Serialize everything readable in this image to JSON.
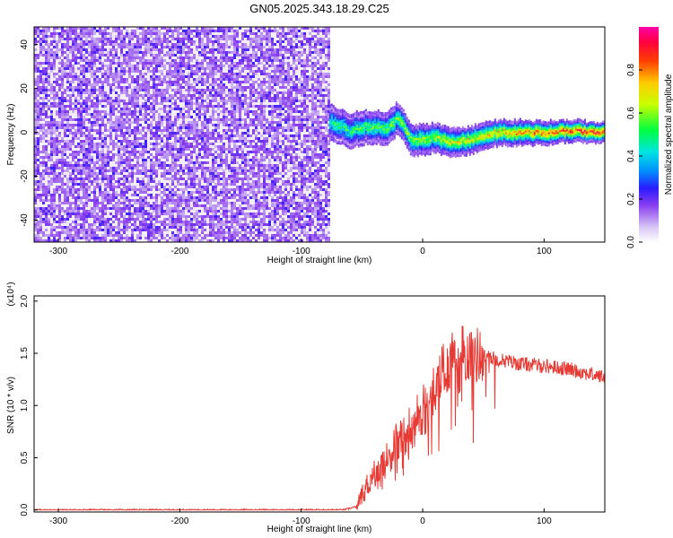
{
  "title": "GN05.2025.343.18.29.C25",
  "chart_data": [
    {
      "type": "heatmap",
      "xlabel": "Height of straight line (km)",
      "ylabel": "Frequency (Hz)",
      "xlim": [
        -320,
        150
      ],
      "ylim": [
        -50,
        48
      ],
      "xticks": [
        -300,
        -200,
        -100,
        0,
        100
      ],
      "yticks": [
        -40,
        -20,
        0,
        20,
        40
      ],
      "noise_region": {
        "x_range": [
          -320,
          -77
        ],
        "y_range": [
          -50,
          48
        ],
        "amplitude_level": 0.18
      },
      "signal_band": {
        "x_range": [
          -77,
          150
        ],
        "center_freq": 0,
        "half_width": 7,
        "centerline": [
          [
            -77,
            5
          ],
          [
            -60,
            1
          ],
          [
            -45,
            3
          ],
          [
            -30,
            2
          ],
          [
            -20,
            7
          ],
          [
            -10,
            -4
          ],
          [
            0,
            -3
          ],
          [
            10,
            -2
          ],
          [
            20,
            -4
          ],
          [
            30,
            -4
          ],
          [
            40,
            -3
          ],
          [
            60,
            0
          ],
          [
            80,
            0
          ],
          [
            100,
            0
          ],
          [
            120,
            1
          ],
          [
            150,
            0
          ]
        ],
        "peak_amplitude": 0.95
      },
      "grid": false
    },
    {
      "type": "colorbar",
      "label": "Normalized spectral amplitude",
      "range": [
        0,
        1
      ],
      "ticks": [
        "0.0",
        "0.2",
        "0.4",
        "0.6",
        "0.8"
      ],
      "tick_values": [
        0,
        0.2,
        0.4,
        0.6,
        0.8
      ]
    },
    {
      "type": "line",
      "xlabel": "Height of straight line (km)",
      "ylabel": "SNR (10 * v/v)",
      "multiplier": "(x10⁴)",
      "xlim": [
        -320,
        150
      ],
      "ylim": [
        -0.02,
        2.05
      ],
      "xticks": [
        -300,
        -200,
        -100,
        0,
        100
      ],
      "yticks": [
        "0.0",
        "0.5",
        "1.0",
        "1.5",
        "2.0"
      ],
      "ytick_values": [
        0,
        0.5,
        1,
        1.5,
        2
      ],
      "series": [
        {
          "color": "#e83a34",
          "x": [
            -320,
            -100,
            -65,
            -55,
            -50,
            -45,
            -40,
            -30,
            -20,
            -10,
            0,
            10,
            20,
            30,
            40,
            60,
            80,
            100,
            120,
            150
          ],
          "values": [
            0,
            0,
            0,
            0.03,
            0.15,
            0.25,
            0.35,
            0.5,
            0.65,
            0.8,
            0.95,
            1.15,
            1.38,
            1.5,
            1.5,
            1.45,
            1.4,
            1.38,
            1.35,
            1.27
          ]
        }
      ],
      "grid": false
    }
  ]
}
